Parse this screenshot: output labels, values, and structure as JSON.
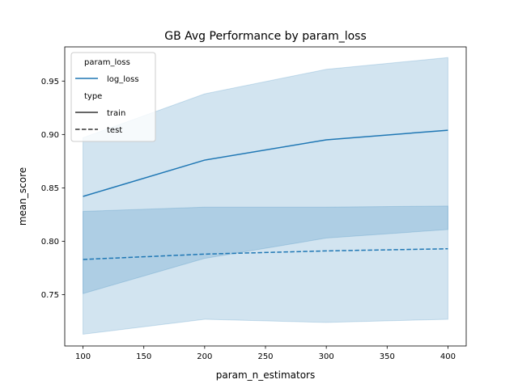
{
  "chart_data": {
    "type": "line",
    "title": "GB Avg Performance by param_loss",
    "xlabel": "param_n_estimators",
    "ylabel": "mean_score",
    "xlim": [
      85,
      415
    ],
    "ylim": [
      0.702,
      0.982
    ],
    "xticks": [
      100,
      150,
      200,
      250,
      300,
      350,
      400
    ],
    "xtick_labels": [
      "100",
      "150",
      "200",
      "250",
      "300",
      "350",
      "400"
    ],
    "yticks": [
      0.75,
      0.8,
      0.85,
      0.9,
      0.95
    ],
    "ytick_labels": [
      "0.75",
      "0.80",
      "0.85",
      "0.90",
      "0.95"
    ],
    "grid": false,
    "legend_position": "top-left",
    "legend": {
      "hue_title": "param_loss",
      "hue_entries": [
        {
          "label": "log_loss",
          "color": "#1f77b4"
        }
      ],
      "style_title": "type",
      "style_entries": [
        {
          "label": "train",
          "dash": "solid"
        },
        {
          "label": "test",
          "dash": "dashed"
        }
      ]
    },
    "x": [
      100,
      200,
      300,
      400
    ],
    "series": [
      {
        "name": "train",
        "dash": "solid",
        "color": "#1f77b4",
        "values": [
          0.842,
          0.876,
          0.895,
          0.904
        ],
        "ci_low": [
          0.751,
          0.784,
          0.803,
          0.811
        ],
        "ci_high": [
          0.897,
          0.938,
          0.961,
          0.972
        ]
      },
      {
        "name": "test",
        "dash": "dashed",
        "color": "#1f77b4",
        "values": [
          0.783,
          0.788,
          0.791,
          0.793
        ],
        "ci_low": [
          0.713,
          0.727,
          0.724,
          0.727
        ],
        "ci_high": [
          0.828,
          0.832,
          0.832,
          0.833
        ]
      }
    ]
  }
}
